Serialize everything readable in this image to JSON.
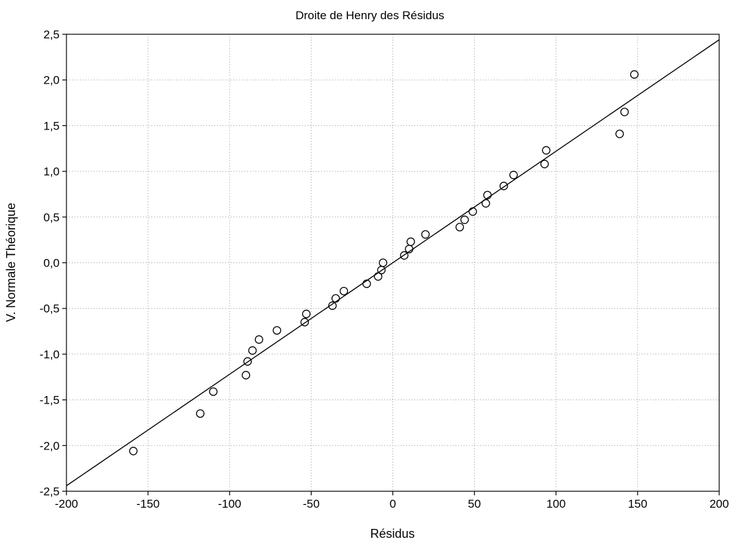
{
  "chart_data": {
    "type": "scatter",
    "title": "Droite de Henry des Résidus",
    "xlabel": "Résidus",
    "ylabel": "V. Normale Théorique",
    "xlim": [
      -200,
      200
    ],
    "ylim": [
      -2.5,
      2.5
    ],
    "x_ticks": [
      -200,
      -150,
      -100,
      -50,
      0,
      50,
      100,
      150,
      200
    ],
    "x_tick_labels": [
      "-200",
      "-150",
      "-100",
      "-50",
      "0",
      "50",
      "100",
      "150",
      "200"
    ],
    "y_ticks": [
      -2.5,
      -2.0,
      -1.5,
      -1.0,
      -0.5,
      0.0,
      0.5,
      1.0,
      1.5,
      2.0,
      2.5
    ],
    "y_tick_labels": [
      "-2,5",
      "-2,0",
      "-1,5",
      "-1,0",
      "-0,5",
      "0,0",
      "0,5",
      "1,0",
      "1,5",
      "2,0",
      "2,5"
    ],
    "grid": true,
    "marker": "open-circle",
    "series": [
      {
        "x": [
          -159,
          -118,
          -110,
          -90,
          -89,
          -86,
          -82,
          -71,
          -54,
          -53,
          -37,
          -35,
          -30,
          -16,
          -9,
          -7,
          -6,
          7,
          10,
          11,
          20,
          41,
          44,
          49,
          57,
          58,
          68,
          74,
          93,
          94,
          139,
          142,
          148
        ],
        "y": [
          -2.06,
          -1.65,
          -1.41,
          -1.23,
          -1.08,
          -0.96,
          -0.84,
          -0.74,
          -0.65,
          -0.56,
          -0.47,
          -0.39,
          -0.31,
          -0.23,
          -0.15,
          -0.08,
          0.0,
          0.08,
          0.15,
          0.23,
          0.31,
          0.39,
          0.47,
          0.56,
          0.65,
          0.74,
          0.84,
          0.96,
          1.08,
          1.23,
          1.41,
          1.65,
          2.06
        ]
      }
    ],
    "fit_line": {
      "x": [
        -200,
        200
      ],
      "y": [
        -2.44,
        2.44
      ]
    },
    "colors": {
      "marker": "#000000",
      "line": "#000000",
      "grid": "#9a9a9a",
      "background": "#ffffff"
    }
  }
}
